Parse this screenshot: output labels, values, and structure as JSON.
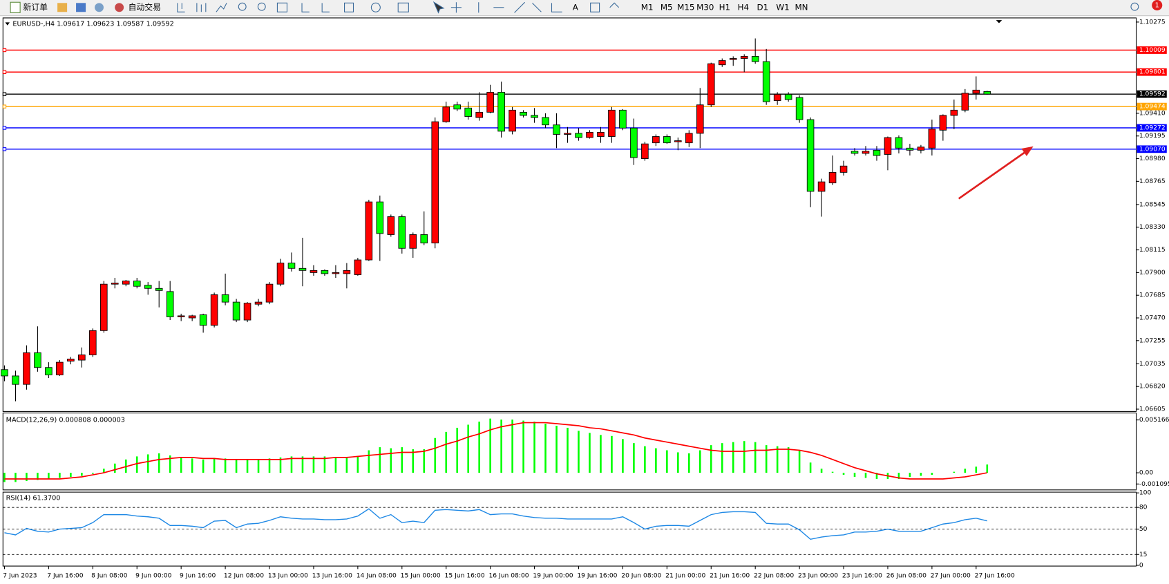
{
  "toolbar": {
    "new_order": "新订单",
    "auto_trading": "自动交易",
    "text_tool": "A",
    "timeframes": [
      "M1",
      "M5",
      "M15",
      "M30",
      "H1",
      "H4",
      "D1",
      "W1",
      "MN"
    ],
    "badge": 1
  },
  "chart_data": [
    {
      "type": "candlestick",
      "title": "EURUSD-,H4  1.09617 1.09623 1.09587 1.09592",
      "categories": [
        "7 Jun 2023",
        null,
        null,
        null,
        "7 Jun 16:00",
        null,
        null,
        null,
        "8 Jun 08:00",
        null,
        null,
        null,
        "9 Jun 00:00",
        null,
        null,
        null,
        "9 Jun 16:00",
        null,
        null,
        null,
        "12 Jun 08:00",
        null,
        null,
        null,
        "13 Jun 00:00",
        null,
        null,
        null,
        "13 Jun 16:00",
        null,
        null,
        null,
        "14 Jun 08:00",
        null,
        null,
        null,
        "15 Jun 00:00",
        null,
        null,
        null,
        "15 Jun 16:00",
        null,
        null,
        null,
        "16 Jun 08:00",
        null,
        null,
        null,
        "19 Jun 00:00",
        null,
        null,
        null,
        "19 Jun 16:00",
        null,
        null,
        null,
        "20 Jun 08:00",
        null,
        null,
        null,
        "21 Jun 00:00",
        null,
        null,
        null,
        "21 Jun 16:00",
        null,
        null,
        null,
        "22 Jun 08:00",
        null,
        null,
        null,
        "23 Jun 00:00",
        null,
        null,
        null,
        "23 Jun 16:00",
        null,
        null,
        null,
        "26 Jun 08:00",
        null,
        null,
        null,
        "27 Jun 00:00",
        null,
        null,
        null,
        "27 Jun 16:00",
        null
      ],
      "open": [
        1.0698,
        1.0692,
        1.0684,
        1.0714,
        1.07,
        1.0693,
        1.0706,
        1.0707,
        1.0712,
        1.0735,
        1.0779,
        1.0779,
        1.0782,
        1.0778,
        1.0775,
        1.0772,
        1.0748,
        1.0747,
        1.075,
        1.074,
        1.0769,
        1.0762,
        1.0745,
        1.076,
        1.0762,
        1.0779,
        1.0799,
        1.0794,
        1.079,
        1.0792,
        1.0789,
        1.0789,
        1.0788,
        1.0802,
        1.0857,
        1.0826,
        1.0843,
        1.0813,
        1.0826,
        1.0818,
        1.0933,
        1.0949,
        1.0946,
        1.0937,
        1.0942,
        1.0961,
        1.0924,
        1.0942,
        1.0939,
        1.0937,
        1.093,
        1.0921,
        1.0922,
        1.0918,
        1.0919,
        1.0919,
        1.0944,
        1.0927,
        1.0898,
        1.0913,
        1.0919,
        1.0914,
        1.0913,
        1.0922,
        1.0949,
        1.0987,
        1.0992,
        1.0993,
        1.0995,
        1.099,
        1.0953,
        1.0959,
        1.0956,
        1.0935,
        1.0867,
        1.0875,
        1.0885,
        1.0905,
        1.0903,
        1.0906,
        1.0902,
        1.0918,
        1.0908,
        1.0906,
        1.0908,
        1.0925,
        1.0939,
        1.0944,
        1.096,
        1.09617
      ],
      "close": [
        1.0692,
        1.0684,
        1.0714,
        1.07,
        1.0693,
        1.0705,
        1.0708,
        1.0712,
        1.0735,
        1.0779,
        1.078,
        1.0782,
        1.0777,
        1.0775,
        1.0773,
        1.0748,
        1.0749,
        1.0749,
        1.074,
        1.0769,
        1.0762,
        1.0745,
        1.0761,
        1.0762,
        1.0779,
        1.0799,
        1.0794,
        1.0792,
        1.0792,
        1.0789,
        1.079,
        1.0792,
        1.0802,
        1.0857,
        1.0827,
        1.0843,
        1.0813,
        1.0826,
        1.0818,
        1.0933,
        1.0947,
        1.0945,
        1.0938,
        1.0942,
        1.0961,
        1.0924,
        1.0944,
        1.0939,
        1.0937,
        1.093,
        1.0921,
        1.0922,
        1.0918,
        1.0923,
        1.0923,
        1.0944,
        1.0927,
        1.0899,
        1.0912,
        1.0919,
        1.0913,
        1.0915,
        1.0922,
        1.0949,
        1.0988,
        1.0991,
        1.0993,
        1.0995,
        1.099,
        1.0952,
        1.0959,
        1.0954,
        1.0935,
        1.0867,
        1.0876,
        1.0885,
        1.0891,
        1.0903,
        1.0905,
        1.0901,
        1.0918,
        1.0908,
        1.0906,
        1.0909,
        1.0926,
        1.0939,
        1.0944,
        1.096,
        1.0963,
        1.09592
      ],
      "high": [
        1.0702,
        1.0697,
        1.0721,
        1.0739,
        1.0705,
        1.0707,
        1.071,
        1.0719,
        1.0737,
        1.0782,
        1.0785,
        1.0783,
        1.0785,
        1.0781,
        1.0782,
        1.0782,
        1.0751,
        1.075,
        1.0751,
        1.0771,
        1.0789,
        1.0765,
        1.0762,
        1.0765,
        1.0781,
        1.0803,
        1.0809,
        1.0823,
        1.0797,
        1.0793,
        1.0797,
        1.0799,
        1.0804,
        1.0859,
        1.0863,
        1.0845,
        1.0845,
        1.0828,
        1.0848,
        1.0937,
        1.0952,
        1.0952,
        1.0952,
        1.0961,
        1.0968,
        1.0971,
        1.0947,
        1.0944,
        1.0946,
        1.0941,
        1.0941,
        1.0928,
        1.0927,
        1.0925,
        1.0928,
        1.0947,
        1.0945,
        1.0936,
        1.0914,
        1.0921,
        1.0921,
        1.0918,
        1.0925,
        1.0965,
        1.0989,
        1.0993,
        1.0995,
        1.0997,
        1.1012,
        1.1002,
        1.0961,
        1.0961,
        1.0958,
        1.0937,
        1.0879,
        1.0901,
        1.0896,
        1.0908,
        1.091,
        1.091,
        1.0919,
        1.092,
        1.0912,
        1.0911,
        1.0935,
        1.094,
        1.0954,
        1.0964,
        1.0976,
        1.09623
      ],
      "low": [
        1.0687,
        1.0668,
        1.0679,
        1.0696,
        1.069,
        1.0692,
        1.0703,
        1.07,
        1.071,
        1.0733,
        1.0775,
        1.0777,
        1.0775,
        1.0769,
        1.0757,
        1.0745,
        1.0744,
        1.0744,
        1.0733,
        1.0738,
        1.0759,
        1.0743,
        1.0743,
        1.0758,
        1.076,
        1.0777,
        1.0791,
        1.0777,
        1.0787,
        1.0787,
        1.0785,
        1.0775,
        1.0787,
        1.0801,
        1.0801,
        1.0824,
        1.0808,
        1.0804,
        1.0816,
        1.0813,
        1.0932,
        1.0943,
        1.0935,
        1.0934,
        1.0941,
        1.0918,
        1.0921,
        1.0937,
        1.0932,
        1.0927,
        1.0908,
        1.0913,
        1.0915,
        1.0917,
        1.0913,
        1.0913,
        1.0925,
        1.0892,
        1.0896,
        1.091,
        1.0912,
        1.0906,
        1.0909,
        1.0908,
        1.0947,
        1.0985,
        1.0986,
        1.098,
        1.0988,
        1.0949,
        1.0949,
        1.0952,
        1.0932,
        1.0852,
        1.0843,
        1.0873,
        1.0882,
        1.0901,
        1.0901,
        1.0896,
        1.0887,
        1.0903,
        1.0901,
        1.0903,
        1.0901,
        1.0915,
        1.0926,
        1.0942,
        1.0954,
        1.09587
      ],
      "up_color": "#ff0000",
      "down_color": "#00ff00",
      "ylim": [
        1.0659,
        1.103
      ],
      "yticks": [
        1.10275,
        {
          "value": 1.0941,
          "label": "1.09410"
        },
        1.09195,
        {
          "value": 1.0898,
          "label": "1.08980"
        },
        1.08765,
        1.08545,
        {
          "value": 1.0833,
          "label": "1.08330"
        },
        1.08115,
        {
          "value": 1.079,
          "label": "1.07900"
        },
        1.07685,
        {
          "value": 1.0747,
          "label": "1.07470"
        },
        1.07255,
        1.07035,
        {
          "value": 1.0682,
          "label": "1.06820"
        },
        1.06605
      ],
      "levels": [
        {
          "value": 1.10009,
          "color": "#ff0000"
        },
        {
          "value": 1.09801,
          "color": "#ff0000"
        },
        {
          "value": 1.09592,
          "color": "#000000"
        },
        {
          "value": 1.09474,
          "color": "#ffa500"
        },
        {
          "value": 1.09272,
          "color": "#0000ff"
        },
        {
          "value": 1.0907,
          "label": "1.09070",
          "color": "#0000ff"
        }
      ]
    },
    {
      "type": "macd",
      "title": "MACD(12,26,9) 0.000808 0.000003",
      "histogram": {
        "color": "#00ff00",
        "values": [
          -0.0009,
          -0.0009,
          -0.0008,
          -0.0007,
          -0.0006,
          -0.0005,
          -0.0004,
          -0.0003,
          -0.0001,
          0.0004,
          0.0009,
          0.0013,
          0.0016,
          0.0018,
          0.0019,
          0.0017,
          0.0015,
          0.0014,
          0.0013,
          0.0014,
          0.0014,
          0.0013,
          0.0013,
          0.0013,
          0.0014,
          0.0015,
          0.0016,
          0.0016,
          0.0016,
          0.0016,
          0.0015,
          0.0015,
          0.0016,
          0.0022,
          0.0025,
          0.0024,
          0.0025,
          0.0023,
          0.0023,
          0.0034,
          0.004,
          0.0044,
          0.0047,
          0.005,
          0.0053,
          0.0052,
          0.0052,
          0.0051,
          0.005,
          0.0048,
          0.0046,
          0.0044,
          0.0041,
          0.0039,
          0.0037,
          0.0036,
          0.0033,
          0.0029,
          0.0026,
          0.0024,
          0.0022,
          0.002,
          0.0019,
          0.0022,
          0.0027,
          0.0029,
          0.003,
          0.0031,
          0.003,
          0.0027,
          0.0026,
          0.0025,
          0.0022,
          0.001,
          0.0004,
          0.0001,
          -0.0002,
          -0.0004,
          -0.0005,
          -0.0006,
          -0.0006,
          -0.0006,
          -0.0004,
          -0.0003,
          -0.0002,
          0.0,
          0.0001,
          0.0004,
          0.0006,
          0.000808
        ]
      },
      "signal": {
        "color": "#ff0000",
        "values": [
          -0.0006,
          -0.0006,
          -0.0006,
          -0.0006,
          -0.0006,
          -0.0006,
          -0.0005,
          -0.0004,
          -0.0002,
          0.0,
          0.0003,
          0.0006,
          0.0009,
          0.0011,
          0.0013,
          0.0014,
          0.0015,
          0.0015,
          0.0014,
          0.0014,
          0.0013,
          0.0013,
          0.0013,
          0.0013,
          0.0013,
          0.0013,
          0.0014,
          0.0014,
          0.0014,
          0.0014,
          0.0015,
          0.0015,
          0.0016,
          0.0017,
          0.0018,
          0.0019,
          0.002,
          0.002,
          0.0021,
          0.0024,
          0.0028,
          0.0031,
          0.0035,
          0.0038,
          0.0042,
          0.0045,
          0.0047,
          0.0049,
          0.0049,
          0.0049,
          0.0048,
          0.0047,
          0.0046,
          0.0044,
          0.0043,
          0.0041,
          0.0039,
          0.0037,
          0.0034,
          0.0032,
          0.003,
          0.0028,
          0.0026,
          0.0024,
          0.0022,
          0.0021,
          0.0021,
          0.0021,
          0.0022,
          0.0022,
          0.0023,
          0.0023,
          0.0022,
          0.002,
          0.0017,
          0.0013,
          0.0009,
          0.0005,
          0.0002,
          -0.0001,
          -0.0003,
          -0.0005,
          -0.0006,
          -0.0006,
          -0.0006,
          -0.0006,
          -0.0005,
          -0.0004,
          -0.0002,
          3e-06
        ]
      },
      "ylim": [
        -0.0016,
        0.0057
      ],
      "yticks": [
        0.005166,
        {
          "value": 0,
          "label": "0.00"
        },
        -0.001095
      ]
    },
    {
      "type": "line",
      "title": "RSI(14) 61.3700",
      "color": "#1e88e5",
      "values": [
        45,
        42,
        51,
        47,
        46,
        50,
        51,
        52,
        59,
        70,
        70,
        70,
        68,
        67,
        65,
        55,
        55,
        54,
        52,
        61,
        62,
        52,
        57,
        58,
        62,
        67,
        65,
        64,
        64,
        63,
        63,
        64,
        68,
        78,
        65,
        70,
        59,
        61,
        59,
        76,
        77,
        76,
        75,
        77,
        70,
        71,
        71,
        68,
        66,
        65,
        65,
        64,
        64,
        64,
        64,
        64,
        67,
        59,
        50,
        54,
        55,
        55,
        54,
        62,
        70,
        73,
        74,
        74,
        73,
        58,
        57,
        57,
        49,
        36,
        39,
        41,
        42,
        46,
        46,
        47,
        50,
        47,
        47,
        47,
        52,
        57,
        59,
        63,
        65,
        61.37
      ],
      "ylim": [
        0,
        100
      ],
      "yticks": [
        100,
        80,
        50,
        15,
        0
      ],
      "levels": [
        80,
        50,
        15
      ]
    }
  ]
}
